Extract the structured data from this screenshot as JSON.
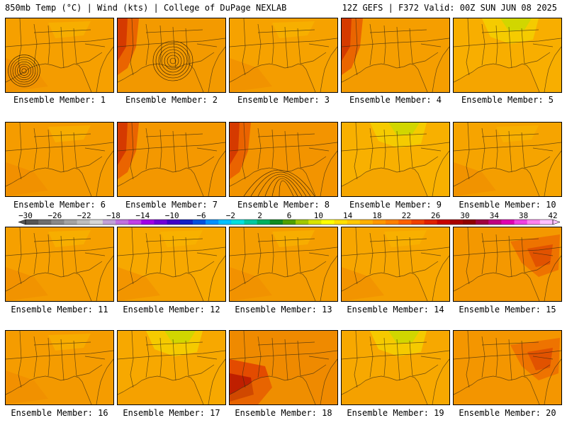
{
  "header": {
    "left": "850mb Temp (°C) | Wind (kts) | College of DuPage NEXLAB",
    "right": "12Z GEFS | F372 Valid: 00Z SUN JUN 08 2025"
  },
  "members": [
    {
      "label": "Ensemble Member: 1",
      "base": "#f6a000",
      "tone": "warm"
    },
    {
      "label": "Ensemble Member: 2",
      "base": "#f39a00",
      "tone": "hot-west"
    },
    {
      "label": "Ensemble Member: 3",
      "base": "#f6a200",
      "tone": "warm"
    },
    {
      "label": "Ensemble Member: 4",
      "base": "#f59e00",
      "tone": "hot-west"
    },
    {
      "label": "Ensemble Member: 5",
      "base": "#f8ae00",
      "tone": "cool-north"
    },
    {
      "label": "Ensemble Member: 6",
      "base": "#f59c00",
      "tone": "warm"
    },
    {
      "label": "Ensemble Member: 7",
      "base": "#f49800",
      "tone": "hot-west"
    },
    {
      "label": "Ensemble Member: 8",
      "base": "#f39400",
      "tone": "hot-west"
    },
    {
      "label": "Ensemble Member: 9",
      "base": "#f8b000",
      "tone": "cool-north"
    },
    {
      "label": "Ensemble Member: 10",
      "base": "#f6a400",
      "tone": "warm"
    },
    {
      "label": "Ensemble Member: 11",
      "base": "#f6a000",
      "tone": "warm"
    },
    {
      "label": "Ensemble Member: 12",
      "base": "#f7a800",
      "tone": "warm"
    },
    {
      "label": "Ensemble Member: 13",
      "base": "#f59e00",
      "tone": "warm"
    },
    {
      "label": "Ensemble Member: 14",
      "base": "#f7a600",
      "tone": "warm"
    },
    {
      "label": "Ensemble Member: 15",
      "base": "#f49800",
      "tone": "hot-east"
    },
    {
      "label": "Ensemble Member: 16",
      "base": "#f59c00",
      "tone": "warm"
    },
    {
      "label": "Ensemble Member: 17",
      "base": "#f7a800",
      "tone": "cool-north"
    },
    {
      "label": "Ensemble Member: 18",
      "base": "#ef8a00",
      "tone": "hot-south"
    },
    {
      "label": "Ensemble Member: 19",
      "base": "#f7a800",
      "tone": "cool-north"
    },
    {
      "label": "Ensemble Member: 20",
      "base": "#f49600",
      "tone": "hot-east"
    }
  ],
  "colorbar": {
    "labels": [
      "−30",
      "−26",
      "−22",
      "−18",
      "−14",
      "−10",
      "−6",
      "−2",
      "2",
      "6",
      "10",
      "14",
      "18",
      "22",
      "26",
      "30",
      "34",
      "38",
      "42"
    ],
    "colors": [
      "#555555",
      "#6e6e6e",
      "#888888",
      "#a3a3a3",
      "#bdbdbd",
      "#d6d6d6",
      "#c0a0d8",
      "#c070e0",
      "#c040e8",
      "#a000e8",
      "#7000d8",
      "#4000c8",
      "#1020c8",
      "#0050e0",
      "#0090ff",
      "#00c0ff",
      "#00e0e0",
      "#00c8a0",
      "#00b060",
      "#108c20",
      "#50a000",
      "#a0c800",
      "#d8e400",
      "#ffff00",
      "#ffe000",
      "#ffc800",
      "#ffb000",
      "#ff9800",
      "#ff8000",
      "#ff6000",
      "#f04000",
      "#e02000",
      "#c80000",
      "#a80000",
      "#900000",
      "#a00040",
      "#c00080",
      "#e000b0",
      "#f040e0",
      "#ff80f0",
      "#ffc0ff"
    ]
  }
}
